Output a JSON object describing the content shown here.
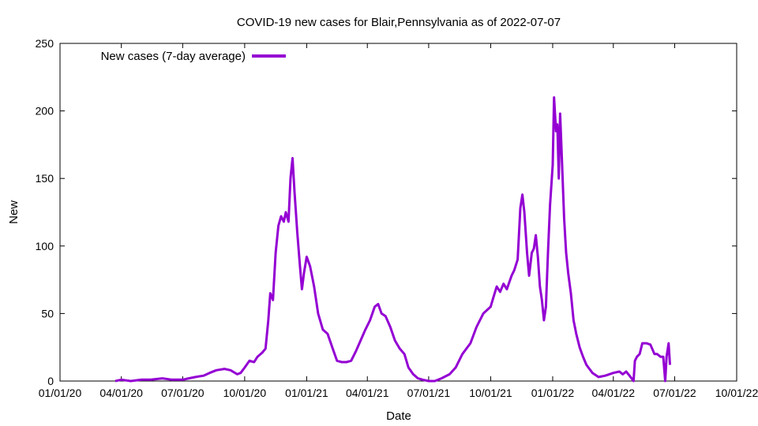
{
  "chart_data": {
    "type": "line",
    "title": "COVID-19 new cases for Blair,Pennsylvania as of 2022-07-07",
    "xlabel": "Date",
    "ylabel": "New",
    "x_axis_type": "date",
    "xlim": [
      "2020-01-01",
      "2022-10-01"
    ],
    "ylim": [
      0,
      250
    ],
    "x_ticks": [
      {
        "date": "2020-01-01",
        "label": "01/01/20"
      },
      {
        "date": "2020-04-01",
        "label": "04/01/20"
      },
      {
        "date": "2020-07-01",
        "label": "07/01/20"
      },
      {
        "date": "2020-10-01",
        "label": "10/01/20"
      },
      {
        "date": "2021-01-01",
        "label": "01/01/21"
      },
      {
        "date": "2021-04-01",
        "label": "04/01/21"
      },
      {
        "date": "2021-07-01",
        "label": "07/01/21"
      },
      {
        "date": "2021-10-01",
        "label": "10/01/21"
      },
      {
        "date": "2022-01-01",
        "label": "01/01/22"
      },
      {
        "date": "2022-04-01",
        "label": "04/01/22"
      },
      {
        "date": "2022-07-01",
        "label": "07/01/22"
      },
      {
        "date": "2022-10-01",
        "label": "10/01/22"
      }
    ],
    "y_ticks": [
      0,
      50,
      100,
      150,
      200,
      250
    ],
    "grid": false,
    "legend_position": "top-left",
    "series": [
      {
        "name": "New cases (7-day average)",
        "color": "#9400d3",
        "points": [
          [
            "2020-03-23",
            0
          ],
          [
            "2020-04-01",
            1
          ],
          [
            "2020-04-15",
            0
          ],
          [
            "2020-05-01",
            1
          ],
          [
            "2020-05-15",
            1
          ],
          [
            "2020-06-01",
            2
          ],
          [
            "2020-06-15",
            1
          ],
          [
            "2020-07-01",
            1
          ],
          [
            "2020-07-10",
            2
          ],
          [
            "2020-07-20",
            3
          ],
          [
            "2020-08-01",
            4
          ],
          [
            "2020-08-10",
            6
          ],
          [
            "2020-08-20",
            8
          ],
          [
            "2020-09-01",
            9
          ],
          [
            "2020-09-10",
            8
          ],
          [
            "2020-09-20",
            5
          ],
          [
            "2020-09-25",
            6
          ],
          [
            "2020-10-01",
            10
          ],
          [
            "2020-10-08",
            15
          ],
          [
            "2020-10-15",
            14
          ],
          [
            "2020-10-20",
            18
          ],
          [
            "2020-10-27",
            21
          ],
          [
            "2020-11-01",
            24
          ],
          [
            "2020-11-05",
            45
          ],
          [
            "2020-11-08",
            65
          ],
          [
            "2020-11-12",
            60
          ],
          [
            "2020-11-16",
            95
          ],
          [
            "2020-11-20",
            115
          ],
          [
            "2020-11-24",
            122
          ],
          [
            "2020-11-28",
            118
          ],
          [
            "2020-12-01",
            125
          ],
          [
            "2020-12-05",
            118
          ],
          [
            "2020-12-08",
            150
          ],
          [
            "2020-12-11",
            165
          ],
          [
            "2020-12-14",
            140
          ],
          [
            "2020-12-18",
            110
          ],
          [
            "2020-12-22",
            85
          ],
          [
            "2020-12-25",
            68
          ],
          [
            "2020-12-28",
            80
          ],
          [
            "2021-01-01",
            92
          ],
          [
            "2021-01-06",
            85
          ],
          [
            "2021-01-12",
            70
          ],
          [
            "2021-01-18",
            50
          ],
          [
            "2021-01-25",
            38
          ],
          [
            "2021-02-01",
            35
          ],
          [
            "2021-02-08",
            25
          ],
          [
            "2021-02-15",
            15
          ],
          [
            "2021-02-22",
            14
          ],
          [
            "2021-03-01",
            14
          ],
          [
            "2021-03-08",
            15
          ],
          [
            "2021-03-15",
            22
          ],
          [
            "2021-03-22",
            30
          ],
          [
            "2021-03-29",
            38
          ],
          [
            "2021-04-05",
            45
          ],
          [
            "2021-04-12",
            55
          ],
          [
            "2021-04-17",
            57
          ],
          [
            "2021-04-22",
            50
          ],
          [
            "2021-04-28",
            48
          ],
          [
            "2021-05-05",
            40
          ],
          [
            "2021-05-12",
            30
          ],
          [
            "2021-05-19",
            24
          ],
          [
            "2021-05-26",
            20
          ],
          [
            "2021-06-01",
            10
          ],
          [
            "2021-06-08",
            5
          ],
          [
            "2021-06-15",
            2
          ],
          [
            "2021-06-22",
            1
          ],
          [
            "2021-07-01",
            0
          ],
          [
            "2021-07-10",
            0
          ],
          [
            "2021-07-20",
            2
          ],
          [
            "2021-08-01",
            5
          ],
          [
            "2021-08-10",
            10
          ],
          [
            "2021-08-20",
            20
          ],
          [
            "2021-09-01",
            28
          ],
          [
            "2021-09-10",
            40
          ],
          [
            "2021-09-20",
            50
          ],
          [
            "2021-10-01",
            55
          ],
          [
            "2021-10-05",
            62
          ],
          [
            "2021-10-10",
            70
          ],
          [
            "2021-10-15",
            66
          ],
          [
            "2021-10-20",
            72
          ],
          [
            "2021-10-25",
            68
          ],
          [
            "2021-11-01",
            78
          ],
          [
            "2021-11-05",
            82
          ],
          [
            "2021-11-10",
            90
          ],
          [
            "2021-11-14",
            128
          ],
          [
            "2021-11-17",
            138
          ],
          [
            "2021-11-20",
            125
          ],
          [
            "2021-11-24",
            95
          ],
          [
            "2021-11-27",
            78
          ],
          [
            "2021-12-01",
            95
          ],
          [
            "2021-12-04",
            98
          ],
          [
            "2021-12-07",
            108
          ],
          [
            "2021-12-10",
            92
          ],
          [
            "2021-12-13",
            70
          ],
          [
            "2021-12-16",
            60
          ],
          [
            "2021-12-19",
            45
          ],
          [
            "2021-12-22",
            55
          ],
          [
            "2021-12-25",
            95
          ],
          [
            "2021-12-28",
            130
          ],
          [
            "2022-01-01",
            160
          ],
          [
            "2022-01-03",
            210
          ],
          [
            "2022-01-06",
            185
          ],
          [
            "2022-01-08",
            190
          ],
          [
            "2022-01-10",
            150
          ],
          [
            "2022-01-12",
            198
          ],
          [
            "2022-01-15",
            160
          ],
          [
            "2022-01-18",
            120
          ],
          [
            "2022-01-21",
            95
          ],
          [
            "2022-01-24",
            80
          ],
          [
            "2022-01-28",
            65
          ],
          [
            "2022-02-01",
            45
          ],
          [
            "2022-02-05",
            35
          ],
          [
            "2022-02-10",
            25
          ],
          [
            "2022-02-15",
            18
          ],
          [
            "2022-02-20",
            12
          ],
          [
            "2022-03-01",
            6
          ],
          [
            "2022-03-10",
            3
          ],
          [
            "2022-03-20",
            4
          ],
          [
            "2022-04-01",
            6
          ],
          [
            "2022-04-10",
            7
          ],
          [
            "2022-04-15",
            5
          ],
          [
            "2022-04-20",
            7
          ],
          [
            "2022-04-25",
            4
          ],
          [
            "2022-05-01",
            0
          ],
          [
            "2022-05-03",
            15
          ],
          [
            "2022-05-06",
            18
          ],
          [
            "2022-05-10",
            20
          ],
          [
            "2022-05-14",
            28
          ],
          [
            "2022-05-20",
            28
          ],
          [
            "2022-05-26",
            27
          ],
          [
            "2022-06-01",
            20
          ],
          [
            "2022-06-05",
            20
          ],
          [
            "2022-06-10",
            18
          ],
          [
            "2022-06-14",
            18
          ],
          [
            "2022-06-17",
            0
          ],
          [
            "2022-06-19",
            18
          ],
          [
            "2022-06-22",
            28
          ],
          [
            "2022-06-24",
            12
          ]
        ]
      }
    ]
  }
}
